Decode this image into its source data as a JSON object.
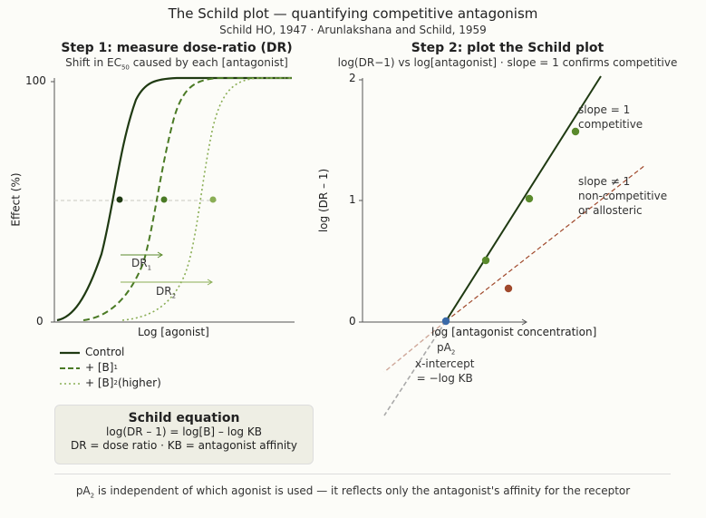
{
  "header": {
    "title": "The Schild plot — quantifying competitive antagonism",
    "subtitle": "Schild HO, 1947 · Arunlakshana and Schild, 1959"
  },
  "left_panel": {
    "title": "Step 1: measure dose-ratio (DR)",
    "subtitle_pre": "Shift in EC",
    "subtitle_sub": "50",
    "subtitle_post": " caused by each [antagonist]",
    "xlabel": "Log [agonist]",
    "ylabel": "Effect (%)",
    "ytick_top": "100",
    "ytick_bottom": "0",
    "dr1_label": "DR",
    "dr1_sub": "1",
    "dr2_label": "DR",
    "dr2_sub": "2"
  },
  "legend": {
    "control": "Control",
    "b1_pre": "+ [B]",
    "b1_sub": "1",
    "b2_pre": "+ [B]",
    "b2_sub": "2",
    "b2_post": " (higher)"
  },
  "equation_box": {
    "title": "Schild equation",
    "line1": "log(DR – 1) = log[B] – log KB",
    "line2": "DR = dose ratio · KB = antagonist affinity"
  },
  "right_panel": {
    "title": "Step 2: plot the Schild plot",
    "subtitle": "log(DR−1) vs log[antagonist] · slope = 1 confirms competitive",
    "xlabel": "log [antagonist concentration]",
    "ylabel": "log (DR – 1)",
    "ytick_2": "2",
    "ytick_1": "1",
    "ytick_0": "0",
    "slope1_line1": "slope = 1",
    "slope1_line2": "competitive",
    "slopeNe_line1": "slope ≠ 1",
    "slopeNe_line2": "non-competitive",
    "slopeNe_line3": "or allosteric",
    "pa2_pre": "pA",
    "pa2_sub": "2",
    "xint_line1": "x-intercept",
    "xint_line2": "= −log KB"
  },
  "footer": {
    "pre": "pA",
    "sub": "2",
    "post": " is independent of which agonist is used — it reflects only the antagonist's affinity for the receptor"
  },
  "colors": {
    "control": "#1f3a12",
    "b1": "#4a7a24",
    "b2": "#8aae55",
    "competitive_point": "#5a8a2c",
    "noncompetitive": "#a0492c",
    "xint_point": "#3a6aa8"
  }
}
